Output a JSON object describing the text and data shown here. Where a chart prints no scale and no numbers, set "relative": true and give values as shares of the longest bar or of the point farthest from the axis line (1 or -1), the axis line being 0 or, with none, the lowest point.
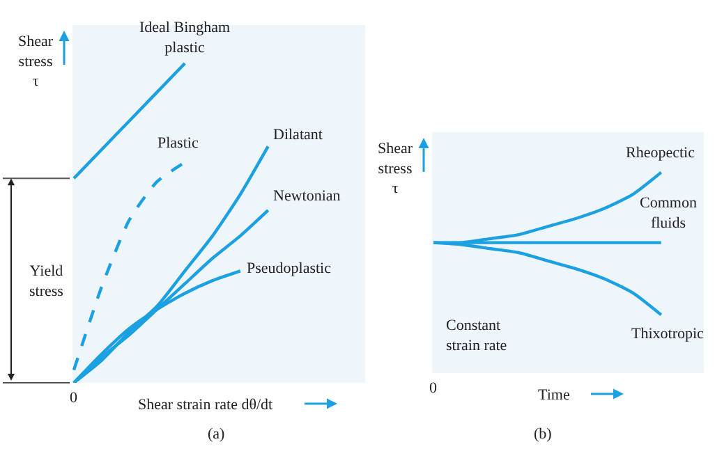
{
  "chart_data": [
    {
      "type": "line",
      "relative": true,
      "xlabel": "Shear strain rate dθ/dt",
      "ylabel": "Shear\nstress\nτ",
      "categories": [
        null,
        null,
        null,
        null,
        null,
        null,
        null,
        null,
        null,
        null,
        null
      ],
      "legend": false,
      "grid": false,
      "marker": "none",
      "series": [
        {
          "name": "Ideal Bingham\nplastic",
          "color": "#1ba1e2",
          "values": [
            0.64,
            0.73,
            0.82,
            0.91,
            1.0,
            null,
            null,
            null,
            null,
            null,
            null
          ]
        },
        {
          "name": "Plastic",
          "color": "#1ba1e2",
          "line_style": "dashed",
          "values": [
            0.04,
            0.3,
            0.51,
            0.63,
            0.69,
            null,
            null,
            null,
            null,
            null,
            null
          ]
        },
        {
          "name": "Dilatant",
          "color": "#1ba1e2",
          "values": [
            0,
            0.07,
            0.16,
            0.24,
            0.35,
            0.46,
            0.59,
            0.74,
            null,
            null,
            null
          ]
        },
        {
          "name": "Newtonian",
          "color": "#1ba1e2",
          "values": [
            0,
            0.08,
            0.15,
            0.23,
            0.31,
            0.39,
            0.46,
            0.54,
            null,
            null,
            null
          ]
        },
        {
          "name": "Pseudoplastic",
          "color": "#1ba1e2",
          "values": [
            0,
            0.09,
            0.17,
            0.23,
            0.28,
            0.32,
            0.35,
            null,
            null,
            null,
            null
          ]
        }
      ],
      "annotations": [
        "0",
        "Yield\nstress",
        "(a)"
      ]
    },
    {
      "type": "line",
      "relative": true,
      "xlabel": "Time",
      "ylabel": "Shear\nstress\nτ",
      "categories": [
        null,
        null,
        null,
        null,
        null,
        null,
        null,
        null,
        null,
        null
      ],
      "legend": false,
      "grid": false,
      "marker": "none",
      "series": [
        {
          "name": "Rheopectic",
          "color": "#1ba1e2",
          "values": [
            0.65,
            0.65,
            0.67,
            0.69,
            0.73,
            0.77,
            0.82,
            0.89,
            1.0,
            null
          ]
        },
        {
          "name": "Common\nfluids",
          "color": "#1ba1e2",
          "values": [
            0.65,
            0.65,
            0.65,
            0.65,
            0.65,
            0.65,
            0.65,
            0.65,
            0.65,
            null
          ]
        },
        {
          "name": "Thixotropic",
          "color": "#1ba1e2",
          "values": [
            0.65,
            0.64,
            0.62,
            0.6,
            0.56,
            0.52,
            0.47,
            0.4,
            0.29,
            null
          ]
        }
      ],
      "annotations": [
        "0",
        "Constant\nstrain rate",
        "(b)"
      ]
    }
  ]
}
